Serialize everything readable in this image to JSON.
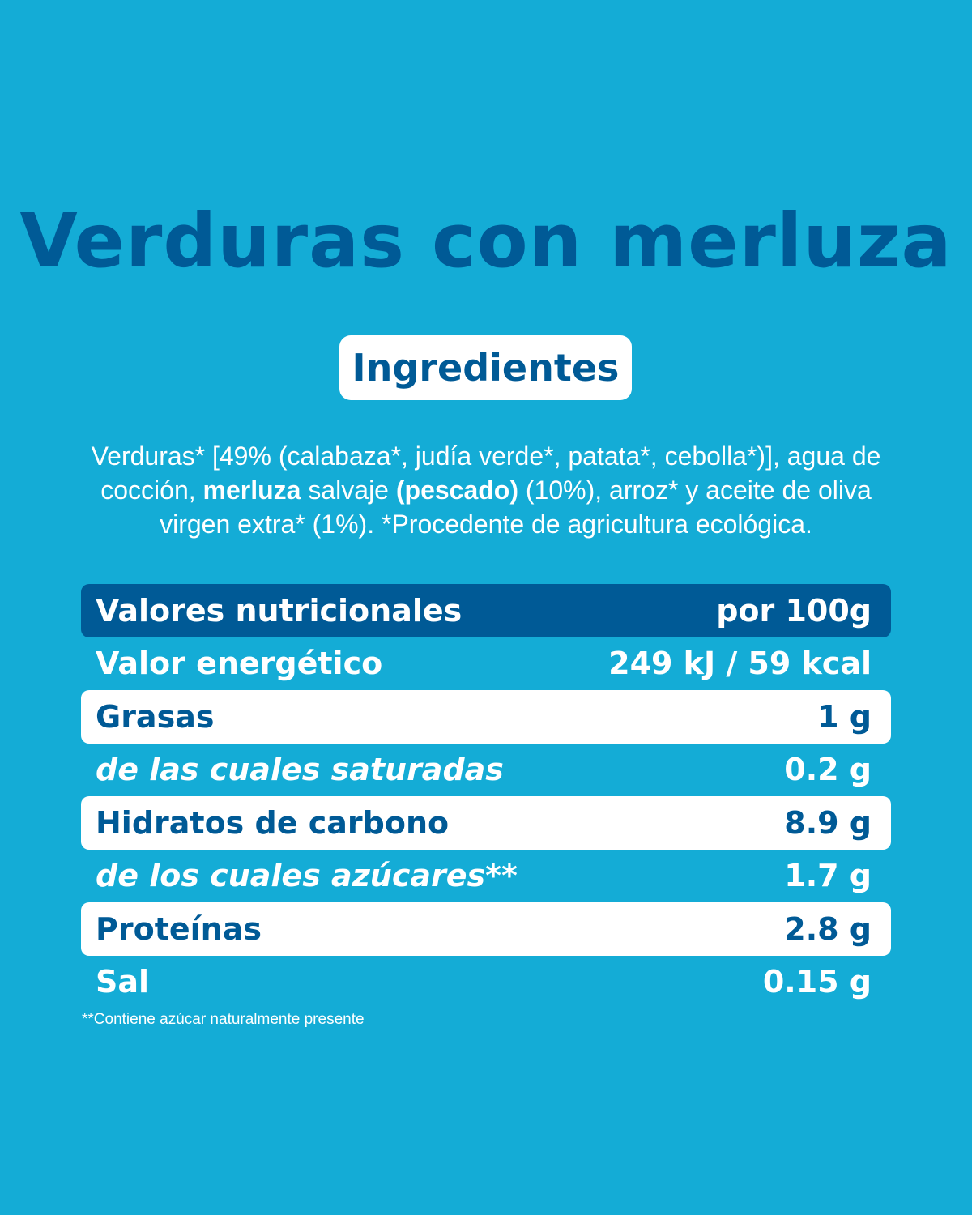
{
  "title": "Verduras con merluza",
  "ingredients_badge": "Ingredientes",
  "ingredients": {
    "p1": "Verduras* [49% (calabaza*, judía verde*, patata*, cebolla*)], agua de cocción, ",
    "b1": "merluza",
    "p2": " salvaje ",
    "b2": "(pescado)",
    "p3": " (10%), arroz* y aceite de oliva virgen extra* (1%). *Procedente de agricultura ecológica."
  },
  "table": {
    "header": {
      "label": "Valores nutricionales",
      "value": "por 100g"
    },
    "rows": [
      {
        "label": "Valor energético",
        "value": "249 kJ / 59 kcal"
      },
      {
        "label": "Grasas",
        "value": "1 g"
      },
      {
        "label": "de las cuales saturadas",
        "value": "0.2 g"
      },
      {
        "label": "Hidratos de carbono",
        "value": "8.9 g"
      },
      {
        "label": "de los cuales azúcares**",
        "value": "1.7 g"
      },
      {
        "label": "Proteínas",
        "value": "2.8 g"
      },
      {
        "label": "Sal",
        "value": "0.15 g"
      }
    ]
  },
  "footnote": "**Contiene azúcar naturalmente presente",
  "colors": {
    "background": "#14acd6",
    "dark_blue": "#005a96",
    "white": "#ffffff"
  }
}
